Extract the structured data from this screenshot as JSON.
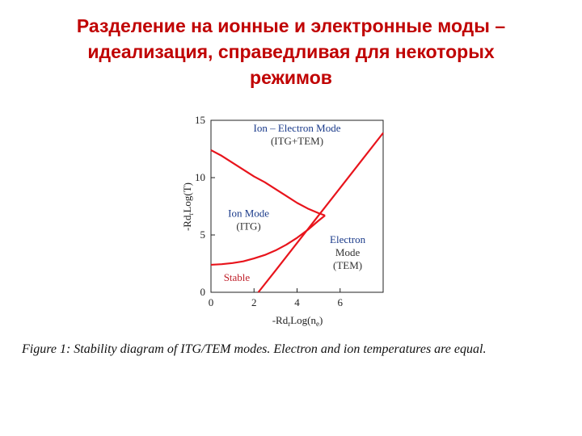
{
  "slide": {
    "title_lines": [
      "Разделение на ионные и электронные моды –",
      "идеализация, справедливая для некоторых",
      "режимов"
    ]
  },
  "figure": {
    "caption": "Figure 1: Stability diagram of ITG/TEM modes. Electron and ion temperatures are equal."
  },
  "colors": {
    "title": "#c00000",
    "curve": "#e8141c",
    "region_label": "#c0202a",
    "axis": "#222222"
  },
  "chart_data": {
    "type": "line",
    "xlabel": "-Rd",
    "xlabel_sub": "r",
    "xlabel_rest": "Log(n",
    "xlabel_sub2": "e",
    "xlabel_end": ")",
    "ylabel": "-Rd",
    "ylabel_sub": "r",
    "ylabel_rest": "Log(T)",
    "xlim": [
      0,
      8
    ],
    "ylim": [
      0,
      15
    ],
    "xticks": [
      "0",
      "2",
      "4",
      "6"
    ],
    "xtick_values": [
      0,
      2,
      4,
      6
    ],
    "yticks": [
      "0",
      "5",
      "10",
      "15"
    ],
    "ytick_values": [
      0,
      5,
      10,
      15
    ],
    "series": [
      {
        "x": [
          0,
          0.5,
          1,
          1.5,
          2,
          2.5,
          3,
          3.5,
          4,
          4.5,
          5,
          5.3
        ],
        "y": [
          12.4,
          11.9,
          11.3,
          10.7,
          10.1,
          9.6,
          9.0,
          8.4,
          7.8,
          7.3,
          6.9,
          6.7
        ]
      },
      {
        "x": [
          0,
          0.5,
          1,
          1.5,
          2,
          2.5,
          3,
          3.5,
          4,
          4.5,
          5,
          5.3
        ],
        "y": [
          2.4,
          2.45,
          2.55,
          2.7,
          2.95,
          3.25,
          3.65,
          4.15,
          4.75,
          5.45,
          6.25,
          6.7
        ]
      },
      {
        "x": [
          2.2,
          3,
          4,
          5,
          6,
          7,
          8
        ],
        "y": [
          0,
          1.9,
          4.3,
          6.7,
          9.1,
          11.5,
          13.9
        ]
      }
    ],
    "region_labels": [
      {
        "lines": [
          "Ion – Electron Mode",
          "(ITG+TEM)"
        ],
        "x": 4.0,
        "y": 14.0
      },
      {
        "lines": [
          "Ion Mode",
          "(ITG)"
        ],
        "x": 1.75,
        "y": 6.6
      },
      {
        "lines": [
          "Electron",
          "Mode",
          "(TEM)"
        ],
        "x": 6.35,
        "y": 4.3
      },
      {
        "lines": [
          "Stable"
        ],
        "x": 1.2,
        "y": 1.0
      }
    ]
  }
}
